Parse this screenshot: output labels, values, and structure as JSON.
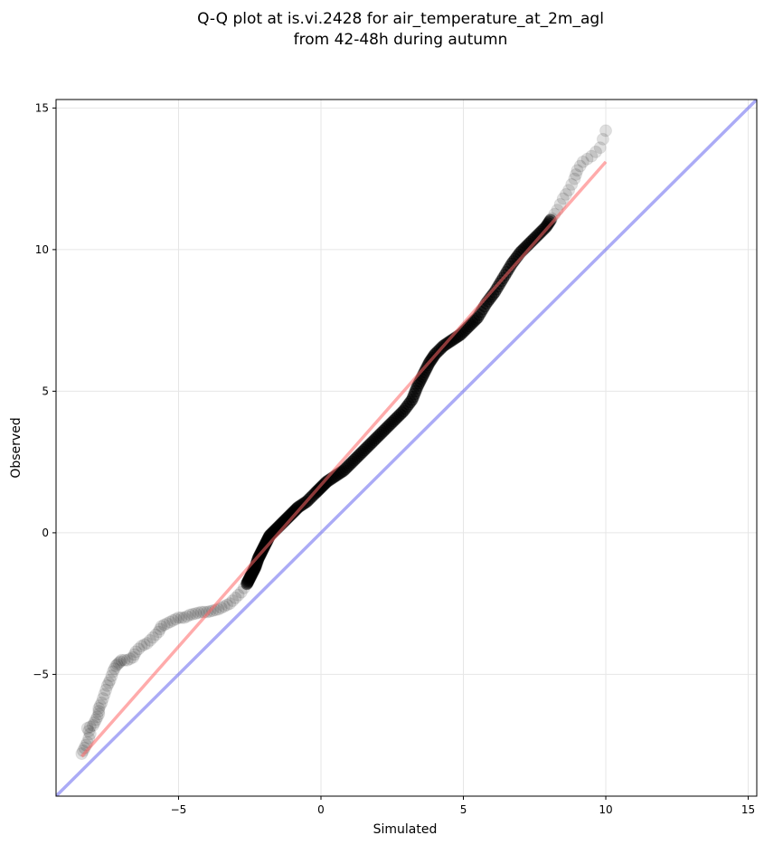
{
  "chart_data": {
    "type": "scatter",
    "title_lines": [
      "Q-Q plot at is.vi.2428 for air_temperature_at_2m_agl",
      "from 42-48h during autumn"
    ],
    "xlabel": "Simulated",
    "ylabel": "Observed",
    "xlim": [
      -9.3,
      15.3
    ],
    "ylim": [
      -9.3,
      15.3
    ],
    "xticks": [
      -5,
      0,
      5,
      10,
      15
    ],
    "yticks": [
      -5,
      0,
      5,
      10,
      15
    ],
    "xtick_labels": [
      "−5",
      "0",
      "5",
      "10",
      "15"
    ],
    "ytick_labels": [
      "−5",
      "0",
      "5",
      "10",
      "15"
    ],
    "grid": true,
    "colors": {
      "points": "#000000",
      "fit_line": "#ff6666",
      "identity_line": "#6666ee",
      "grid": "#e6e6e6"
    },
    "identity_line": {
      "x": [
        -9.3,
        15.3
      ],
      "y": [
        -9.3,
        15.3
      ]
    },
    "fit_line": {
      "x": [
        -8.4,
        10.0
      ],
      "y": [
        -7.9,
        13.1
      ]
    },
    "series": [
      {
        "points": [
          [
            -8.4,
            -7.8
          ],
          [
            -8.3,
            -7.6
          ],
          [
            -8.2,
            -7.4
          ],
          [
            -8.1,
            -7.1
          ],
          [
            -8.2,
            -6.9
          ],
          [
            -8.0,
            -6.8
          ],
          [
            -7.9,
            -6.6
          ],
          [
            -7.8,
            -6.4
          ],
          [
            -7.8,
            -6.2
          ],
          [
            -7.7,
            -6.0
          ],
          [
            -7.6,
            -5.7
          ],
          [
            -7.5,
            -5.4
          ],
          [
            -7.4,
            -5.2
          ],
          [
            -7.3,
            -4.9
          ],
          [
            -7.2,
            -4.7
          ],
          [
            -7.1,
            -4.6
          ],
          [
            -7.0,
            -4.5
          ],
          [
            -6.8,
            -4.5
          ],
          [
            -6.6,
            -4.4
          ],
          [
            -6.5,
            -4.2
          ],
          [
            -6.3,
            -4.0
          ],
          [
            -6.1,
            -3.9
          ],
          [
            -5.9,
            -3.7
          ],
          [
            -5.7,
            -3.5
          ],
          [
            -5.6,
            -3.3
          ],
          [
            -5.4,
            -3.2
          ],
          [
            -5.2,
            -3.1
          ],
          [
            -5.0,
            -3.0
          ],
          [
            -4.8,
            -3.0
          ],
          [
            -4.6,
            -2.9
          ],
          [
            -4.4,
            -2.85
          ],
          [
            -4.2,
            -2.8
          ],
          [
            -4.0,
            -2.8
          ],
          [
            -3.8,
            -2.75
          ],
          [
            -3.6,
            -2.7
          ],
          [
            -3.4,
            -2.6
          ],
          [
            -3.2,
            -2.5
          ],
          [
            -3.0,
            -2.3
          ],
          [
            -2.8,
            -2.1
          ],
          [
            -2.6,
            -1.8
          ],
          [
            -2.5,
            -1.6
          ],
          [
            -2.4,
            -1.4
          ],
          [
            -2.3,
            -1.2
          ],
          [
            -2.2,
            -0.9
          ],
          [
            -2.1,
            -0.7
          ],
          [
            -2.0,
            -0.5
          ],
          [
            -1.9,
            -0.3
          ],
          [
            -1.8,
            -0.1
          ],
          [
            -1.6,
            0.1
          ],
          [
            -1.4,
            0.3
          ],
          [
            -1.2,
            0.5
          ],
          [
            -1.0,
            0.7
          ],
          [
            -0.8,
            0.9
          ],
          [
            -0.5,
            1.1
          ],
          [
            -0.2,
            1.4
          ],
          [
            0.0,
            1.6
          ],
          [
            0.2,
            1.8
          ],
          [
            0.5,
            2.0
          ],
          [
            0.8,
            2.2
          ],
          [
            1.1,
            2.5
          ],
          [
            1.4,
            2.8
          ],
          [
            1.7,
            3.1
          ],
          [
            2.0,
            3.4
          ],
          [
            2.3,
            3.7
          ],
          [
            2.6,
            4.0
          ],
          [
            2.9,
            4.3
          ],
          [
            3.2,
            4.7
          ],
          [
            3.4,
            5.2
          ],
          [
            3.6,
            5.6
          ],
          [
            3.8,
            6.0
          ],
          [
            4.0,
            6.3
          ],
          [
            4.3,
            6.6
          ],
          [
            4.6,
            6.8
          ],
          [
            4.9,
            7.0
          ],
          [
            5.2,
            7.3
          ],
          [
            5.5,
            7.6
          ],
          [
            5.8,
            8.1
          ],
          [
            6.1,
            8.5
          ],
          [
            6.4,
            9.0
          ],
          [
            6.7,
            9.5
          ],
          [
            7.0,
            9.9
          ],
          [
            7.3,
            10.2
          ],
          [
            7.6,
            10.5
          ],
          [
            7.9,
            10.8
          ],
          [
            8.1,
            11.1
          ],
          [
            8.3,
            11.4
          ],
          [
            8.5,
            11.8
          ],
          [
            8.7,
            12.1
          ],
          [
            8.9,
            12.5
          ],
          [
            9.0,
            12.8
          ],
          [
            9.2,
            13.1
          ],
          [
            9.5,
            13.3
          ],
          [
            9.8,
            13.6
          ],
          [
            10.0,
            14.2
          ]
        ]
      }
    ]
  }
}
